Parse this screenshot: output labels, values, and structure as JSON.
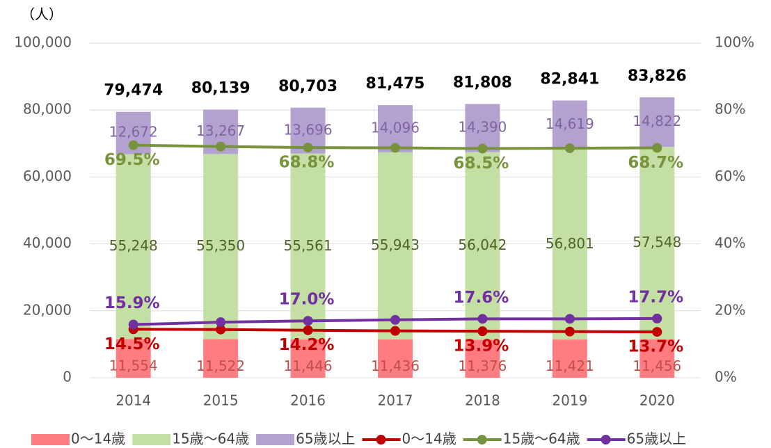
{
  "chart_data": {
    "type": "bar",
    "y_axis_label": "（人）",
    "categories": [
      "2014",
      "2015",
      "2016",
      "2017",
      "2018",
      "2019",
      "2020"
    ],
    "ylim": [
      0,
      100000
    ],
    "yticks": [
      0,
      {
        "value": 20000,
        "label": "20,000"
      },
      {
        "value": 40000,
        "label": "40,000"
      },
      {
        "value": 60000,
        "label": "60,000"
      },
      {
        "value": 80000,
        "label": "80,000"
      },
      {
        "value": 100000,
        "label": "100,000"
      }
    ],
    "y2lim": [
      0,
      100
    ],
    "y2ticks": [
      {
        "value": 0,
        "label": "0%"
      },
      {
        "value": 20,
        "label": "20%"
      },
      {
        "value": 40,
        "label": "40%"
      },
      {
        "value": 60,
        "label": "60%"
      },
      {
        "value": 80,
        "label": "80%"
      },
      {
        "value": 100,
        "label": "100%"
      }
    ],
    "grid": true,
    "legend": "bottom",
    "stacked": true,
    "series": [
      {
        "name": "0～14歳",
        "type": "bar",
        "color": "#ff7c80",
        "label_color": "#c0504d",
        "values": [
          11554,
          11522,
          11446,
          11436,
          11376,
          11421,
          11456
        ],
        "value_labels": [
          "11,554",
          "11,522",
          "11,446",
          "11,436",
          "11,376",
          "11,421",
          "11,456"
        ]
      },
      {
        "name": "15歳～64歳",
        "type": "bar",
        "color": "#c4dfa3",
        "label_color": "#4f6228",
        "values": [
          55248,
          55350,
          55561,
          55943,
          56042,
          56801,
          57548
        ],
        "value_labels": [
          "55,248",
          "55,350",
          "55,561",
          "55,943",
          "56,042",
          "56,801",
          "57,548"
        ]
      },
      {
        "name": "65歳以上",
        "type": "bar",
        "color": "#b3a2cf",
        "label_color": "#8064a2",
        "values": [
          12672,
          13267,
          13696,
          14096,
          14390,
          14619,
          14822
        ],
        "value_labels": [
          "12,672",
          "13,267",
          "13,696",
          "14,096",
          "14,390",
          "14,619",
          "14,822"
        ]
      },
      {
        "name": "0～14歳",
        "type": "line",
        "axis": "y2",
        "color": "#c00000",
        "label_pos": "below",
        "values": [
          14.5,
          14.4,
          14.2,
          14.0,
          13.9,
          13.8,
          13.7
        ],
        "value_labels": [
          "14.5%",
          null,
          "14.2%",
          null,
          "13.9%",
          null,
          "13.7%"
        ]
      },
      {
        "name": "15歳～64歳",
        "type": "line",
        "axis": "y2",
        "color": "#77933c",
        "label_pos": "below",
        "values": [
          69.5,
          69.1,
          68.8,
          68.7,
          68.5,
          68.6,
          68.7
        ],
        "value_labels": [
          "69.5%",
          null,
          "68.8%",
          null,
          "68.5%",
          null,
          "68.7%"
        ]
      },
      {
        "name": "65歳以上",
        "type": "line",
        "axis": "y2",
        "color": "#7030a0",
        "label_pos": "above",
        "values": [
          15.9,
          16.6,
          17.0,
          17.3,
          17.6,
          17.6,
          17.7
        ],
        "value_labels": [
          "15.9%",
          null,
          "17.0%",
          null,
          "17.6%",
          null,
          "17.7%"
        ]
      }
    ],
    "totals": {
      "values": [
        79474,
        80139,
        80703,
        81475,
        81808,
        82841,
        83826
      ],
      "value_labels": [
        "79,474",
        "80,139",
        "80,703",
        "81,475",
        "81,808",
        "82,841",
        "83,826"
      ]
    }
  }
}
